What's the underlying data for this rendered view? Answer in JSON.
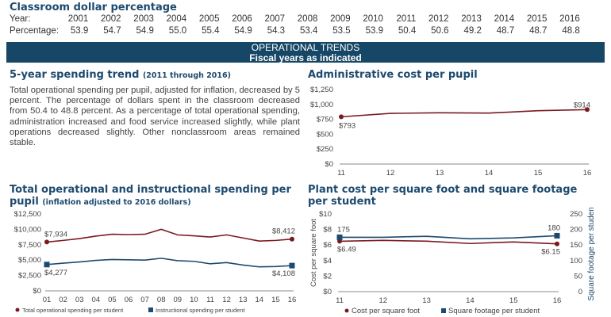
{
  "classroom": {
    "title": "Classroom dollar percentage",
    "year_label": "Year:",
    "pct_label": "Percentage:",
    "years": [
      "2001",
      "2002",
      "2003",
      "2004",
      "2005",
      "2006",
      "2007",
      "2008",
      "2009",
      "2010",
      "2011",
      "2012",
      "2013",
      "2014",
      "2015",
      "2016"
    ],
    "pcts": [
      "53.9",
      "54.7",
      "54.9",
      "55.0",
      "55.4",
      "54.9",
      "54.3",
      "53.4",
      "53.5",
      "53.9",
      "50.4",
      "50.6",
      "49.2",
      "48.7",
      "48.7",
      "48.8"
    ]
  },
  "banner": {
    "title": "OPERATIONAL TRENDS",
    "subtitle": "Fiscal years as indicated"
  },
  "trend": {
    "title": "5-year spending trend",
    "subtitle": "(2011 through 2016)",
    "text": "Total operational spending per pupil, adjusted for inflation, decreased by 5 percent. The percentage of dollars spent in the classroom decreased from 50.4 to 48.8 percent. As a percentage of total operational spending, administration increased and food service increased slightly, while plant operations decreased slightly. Other nonclassroom areas remained stable."
  },
  "colors": {
    "maroon": "#7a1a1f",
    "navy": "#1d4a6e"
  },
  "chart_data": [
    {
      "id": "admin",
      "type": "line",
      "title": "Administrative cost per pupil",
      "categories": [
        "11",
        "12",
        "13",
        "14",
        "15",
        "16"
      ],
      "ylim": [
        0,
        1250
      ],
      "yticks": [
        "$0",
        "$250",
        "$500",
        "$750",
        "$1,000",
        "$1,250"
      ],
      "series": [
        {
          "values": [
            793,
            850,
            860,
            855,
            895,
            914
          ],
          "color": "#7a1a1f",
          "marker": "circle",
          "labels": {
            "first": "$793",
            "last": "$914"
          }
        }
      ]
    },
    {
      "id": "spend",
      "type": "line",
      "title": "Total operational and instructional spending per pupil",
      "subtitle": "(inflation adjusted to 2016 dollars)",
      "categories": [
        "01",
        "02",
        "03",
        "04",
        "05",
        "06",
        "07",
        "08",
        "09",
        "10",
        "11",
        "12",
        "13",
        "14",
        "15",
        "16"
      ],
      "ylim": [
        0,
        12500
      ],
      "yticks": [
        "$0",
        "$2,500",
        "$5,000",
        "$7,500",
        "$10,000",
        "$12,500"
      ],
      "series": [
        {
          "name": "Total operational spending per student",
          "values": [
            7934,
            8200,
            8500,
            8900,
            9200,
            9150,
            9200,
            10000,
            9100,
            8950,
            8750,
            9100,
            8600,
            8100,
            8200,
            8412
          ],
          "color": "#7a1a1f",
          "marker": "circle",
          "labels": {
            "first": "$7,934",
            "last": "$8,412"
          }
        },
        {
          "name": "Instructional spending per student",
          "values": [
            4277,
            4500,
            4700,
            4950,
            5100,
            5050,
            5000,
            5300,
            4900,
            4800,
            4400,
            4600,
            4200,
            3900,
            3950,
            4108
          ],
          "color": "#1d4a6e",
          "marker": "square",
          "labels": {
            "first": "$4,277",
            "last": "$4,108"
          }
        }
      ]
    },
    {
      "id": "plant",
      "type": "line",
      "title": "Plant cost per square foot and square footage per student",
      "categories": [
        "11",
        "12",
        "13",
        "14",
        "15",
        "16"
      ],
      "ylim": [
        0,
        10
      ],
      "y2lim": [
        0,
        250
      ],
      "yticks": [
        "$0",
        "$2",
        "$4",
        "$6",
        "$8",
        "$10"
      ],
      "y2ticks": [
        "0",
        "50",
        "100",
        "150",
        "200",
        "250"
      ],
      "ylabel": "Cost per square foot",
      "y2label": "Square footage per student",
      "series": [
        {
          "name": "Cost per square foot",
          "values": [
            6.49,
            6.6,
            6.5,
            6.2,
            6.4,
            6.15
          ],
          "color": "#7a1a1f",
          "marker": "circle",
          "axis": "left",
          "labels": {
            "first": "$6.49",
            "last": "$6.15"
          }
        },
        {
          "name": "Square footage per student",
          "values": [
            175,
            175,
            178,
            170,
            173,
            180
          ],
          "color": "#1d4a6e",
          "marker": "square",
          "axis": "right",
          "labels": {
            "first": "175",
            "last": "180"
          }
        }
      ]
    }
  ]
}
